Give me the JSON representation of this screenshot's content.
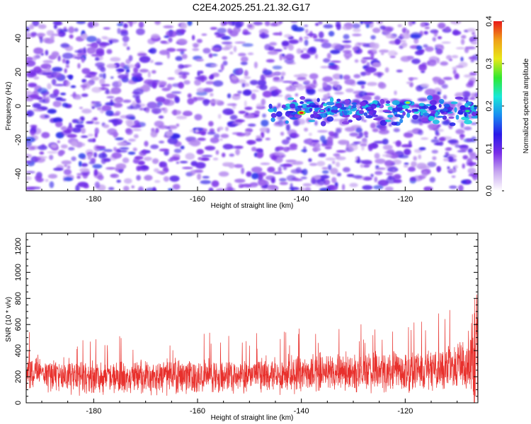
{
  "title": "C2E4.2025.251.21.32.G17",
  "chart_data": [
    {
      "type": "heatmap",
      "name": "spectrogram",
      "xlabel": "Height of straight line (km)",
      "ylabel": "Frequency (Hz)",
      "xlim": [
        -193,
        -106
      ],
      "ylim": [
        -50,
        50
      ],
      "xticks": [
        -180,
        -160,
        -140,
        -120
      ],
      "yticks": [
        -40,
        -20,
        0,
        20,
        40
      ],
      "colorbar": {
        "label": "Normalized spectral amplitude",
        "range": [
          0.0,
          0.4
        ],
        "ticks": [
          "0.0",
          "0.1",
          "0.2",
          "0.3",
          "0.4"
        ],
        "colormap": [
          "#ffffff",
          "#c8a8f0",
          "#7a2ee8",
          "#2a1ae8",
          "#1a8cf0",
          "#1ae8d8",
          "#30e830",
          "#e8e818",
          "#f0a018",
          "#e81818"
        ]
      },
      "signal_band": {
        "x_range": [
          -146,
          -106
        ],
        "center_frequency_hz": -3,
        "peaks": [
          {
            "x": -140,
            "y": -4,
            "amplitude": 0.4
          },
          {
            "x": -136,
            "y": -3,
            "amplitude": 0.2
          },
          {
            "x": -119.5,
            "y": 2,
            "amplitude": 0.3
          },
          {
            "x": -108,
            "y": -3,
            "amplitude": 0.25
          }
        ]
      }
    },
    {
      "type": "line",
      "name": "snr",
      "xlabel": "Height of straight line (km)",
      "ylabel": "SNR (10 * v/v)",
      "xlim": [
        -193,
        -106
      ],
      "ylim": [
        0,
        1300
      ],
      "xticks": [
        -180,
        -160,
        -140,
        -120
      ],
      "yticks": [
        0,
        200,
        400,
        600,
        800,
        1000,
        1200
      ],
      "color": "#e8302c",
      "series": [
        {
          "x": [
            -193,
            -190,
            -186,
            -182,
            -178,
            -174,
            -170,
            -166,
            -162,
            -158,
            -154,
            -150,
            -146,
            -142,
            -138,
            -134,
            -130,
            -126,
            -122,
            -118,
            -114,
            -110,
            -108,
            -107,
            -106
          ],
          "mean": [
            240,
            230,
            210,
            200,
            195,
            190,
            195,
            200,
            205,
            210,
            205,
            210,
            220,
            225,
            230,
            235,
            230,
            235,
            245,
            250,
            260,
            280,
            300,
            400,
            500
          ],
          "spread": [
            170,
            160,
            160,
            160,
            150,
            150,
            150,
            150,
            150,
            150,
            150,
            150,
            160,
            170,
            170,
            170,
            170,
            175,
            180,
            190,
            200,
            220,
            300,
            600,
            800
          ]
        }
      ]
    }
  ]
}
